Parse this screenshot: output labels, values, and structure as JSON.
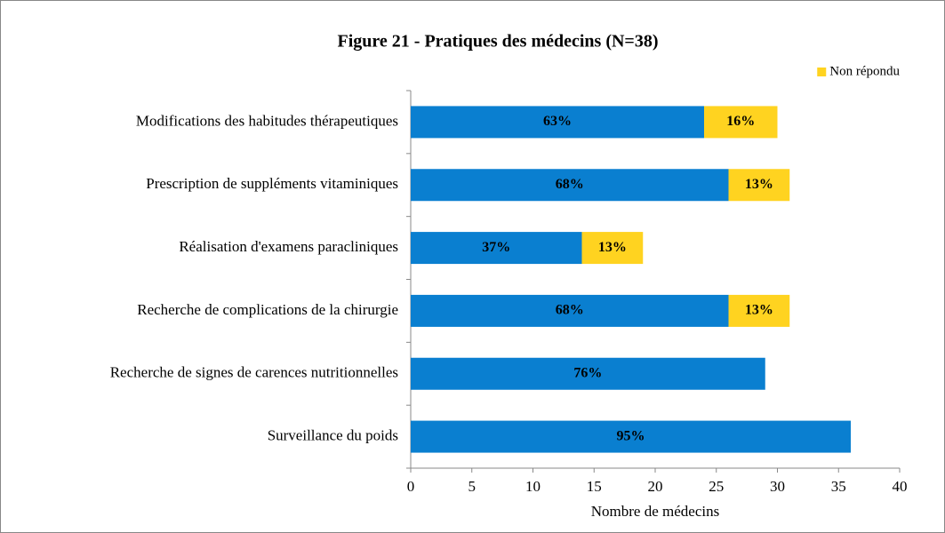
{
  "chart_data": {
    "type": "stacked_barh",
    "title": "Figure 21 - Pratiques des médecins (N=38)",
    "xlabel": "Nombre de médecins",
    "categories": [
      "Modifications des habitudes thérapeutiques",
      "Prescription de suppléments vitaminiques",
      "Réalisation d'examens paracliniques",
      "Recherche de complications de la chirurgie",
      "Recherche de signes de carences nutritionnelles",
      "Surveillance du poids"
    ],
    "series": [
      {
        "color": "#0a7fd0",
        "values": [
          24,
          26,
          14,
          26,
          29,
          36
        ],
        "value_labels": [
          "63%",
          "68%",
          "37%",
          "68%",
          "76%",
          "95%"
        ]
      },
      {
        "name": "Non répondu",
        "color": "#ffd320",
        "values": [
          6,
          5,
          5,
          5,
          null,
          null
        ],
        "value_labels": [
          "16%",
          "13%",
          "13%",
          "13%",
          null,
          null
        ]
      }
    ],
    "xlim": [
      0,
      40
    ],
    "xticks": [
      0,
      5,
      10,
      15,
      20,
      25,
      30,
      35,
      40
    ],
    "legend": "top-right"
  }
}
